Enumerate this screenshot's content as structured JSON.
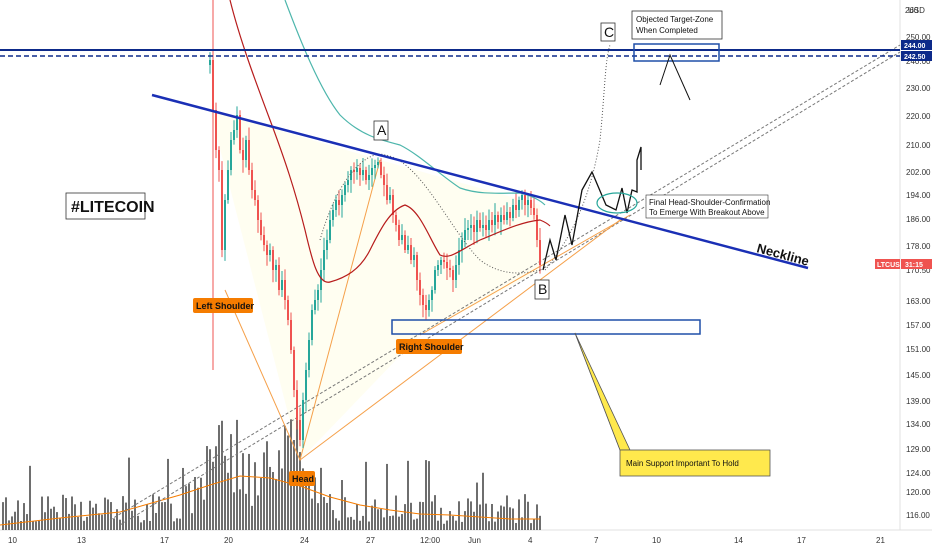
{
  "chart_data": {
    "type": "candlestick",
    "symbol_label": "LTCUSD",
    "current_price_label": "31:15",
    "currency_label": "USD",
    "title": "#LITECOIN",
    "y_axis_ticks": [
      250.0,
      240.0,
      230.0,
      220.0,
      210.0,
      202.0,
      194.0,
      186.0,
      178.0,
      170.5,
      163.0,
      157.0,
      151.0,
      145.0,
      139.0,
      134.0,
      129.0,
      124.0,
      120.0,
      116.0
    ],
    "y_axis_partial_tick": "260",
    "x_axis_ticks": [
      "10",
      "13",
      "17",
      "20",
      "24",
      "27",
      "12:00",
      "Jun",
      "4",
      "7",
      "10",
      "14",
      "17",
      "21"
    ],
    "price_badges": [
      {
        "value": "244.00",
        "color": "#0d2a8a"
      },
      {
        "value": "242.50",
        "color": "#0d2a8a"
      }
    ],
    "annotations": {
      "left_shoulder": "Left Shoulder",
      "head": "Head",
      "right_shoulder": "Right Shoulder",
      "point_a": "A",
      "point_b": "B",
      "point_c": "C",
      "neckline": "Neckline",
      "target_zone_line1": "Objected Target-Zone",
      "target_zone_line2": "When Completed",
      "confirmation_line1": "Final Head-Shoulder-Confirmation",
      "confirmation_line2": "To Emerge With Breakout Above",
      "support_note": "Main Support Important To Hold"
    },
    "levels": {
      "target_resistance": 244.0,
      "neckline_start": 226,
      "neckline_end": 172,
      "support_zone": [
        157,
        159
      ]
    },
    "colors": {
      "neckline": "#1a2fb5",
      "resistance": "#0d2a8a",
      "candle_up": "#26a69a",
      "candle_down": "#ef5350",
      "ma_red": "#b71c1c",
      "ma_teal": "#4db6ac",
      "volume": "#555555",
      "label_orange": "#f57c00",
      "support_box": "#1f4fa8",
      "note_yellow": "#ffe94d"
    }
  }
}
